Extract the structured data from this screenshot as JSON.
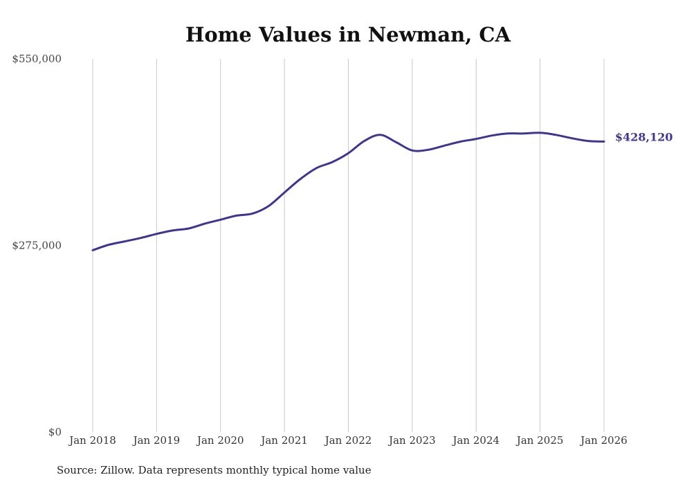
{
  "chart_data": {
    "type": "line",
    "title": "Home Values in Newman, CA",
    "xlabel": "",
    "ylabel": "",
    "ylim": [
      0,
      550000
    ],
    "xlim": [
      2018.0,
      2026.0
    ],
    "y_ticks": [
      {
        "value": 0,
        "label": "$0"
      },
      {
        "value": 275000,
        "label": "$275,000"
      },
      {
        "value": 550000,
        "label": "$550,000"
      }
    ],
    "x_ticks": [
      {
        "value": 2018,
        "label": "Jan 2018"
      },
      {
        "value": 2019,
        "label": "Jan 2019"
      },
      {
        "value": 2020,
        "label": "Jan 2020"
      },
      {
        "value": 2021,
        "label": "Jan 2021"
      },
      {
        "value": 2022,
        "label": "Jan 2022"
      },
      {
        "value": 2023,
        "label": "Jan 2023"
      },
      {
        "value": 2024,
        "label": "Jan 2024"
      },
      {
        "value": 2025,
        "label": "Jan 2025"
      },
      {
        "value": 2026,
        "label": "Jan 2026"
      }
    ],
    "grid": "vertical",
    "series": [
      {
        "name": "Typical home value",
        "color": "#3d3593",
        "x": [
          2018.0,
          2018.25,
          2018.5,
          2018.75,
          2019.0,
          2019.25,
          2019.5,
          2019.75,
          2020.0,
          2020.25,
          2020.5,
          2020.75,
          2021.0,
          2021.25,
          2021.5,
          2021.75,
          2022.0,
          2022.25,
          2022.5,
          2022.75,
          2023.0,
          2023.25,
          2023.5,
          2023.75,
          2024.0,
          2024.25,
          2024.5,
          2024.75,
          2025.0,
          2025.25,
          2025.5,
          2025.75,
          2026.0
        ],
        "values": [
          268000,
          276000,
          281000,
          286000,
          292000,
          297000,
          300000,
          307000,
          313000,
          319000,
          322000,
          333000,
          353000,
          373000,
          389000,
          398000,
          411000,
          429000,
          438000,
          427000,
          415000,
          416000,
          422000,
          428000,
          432000,
          437000,
          440000,
          440000,
          441000,
          438000,
          433000,
          429000,
          428120
        ]
      }
    ],
    "end_label": "$428,120"
  },
  "source_text": "Source: Zillow. Data represents monthly typical home value"
}
